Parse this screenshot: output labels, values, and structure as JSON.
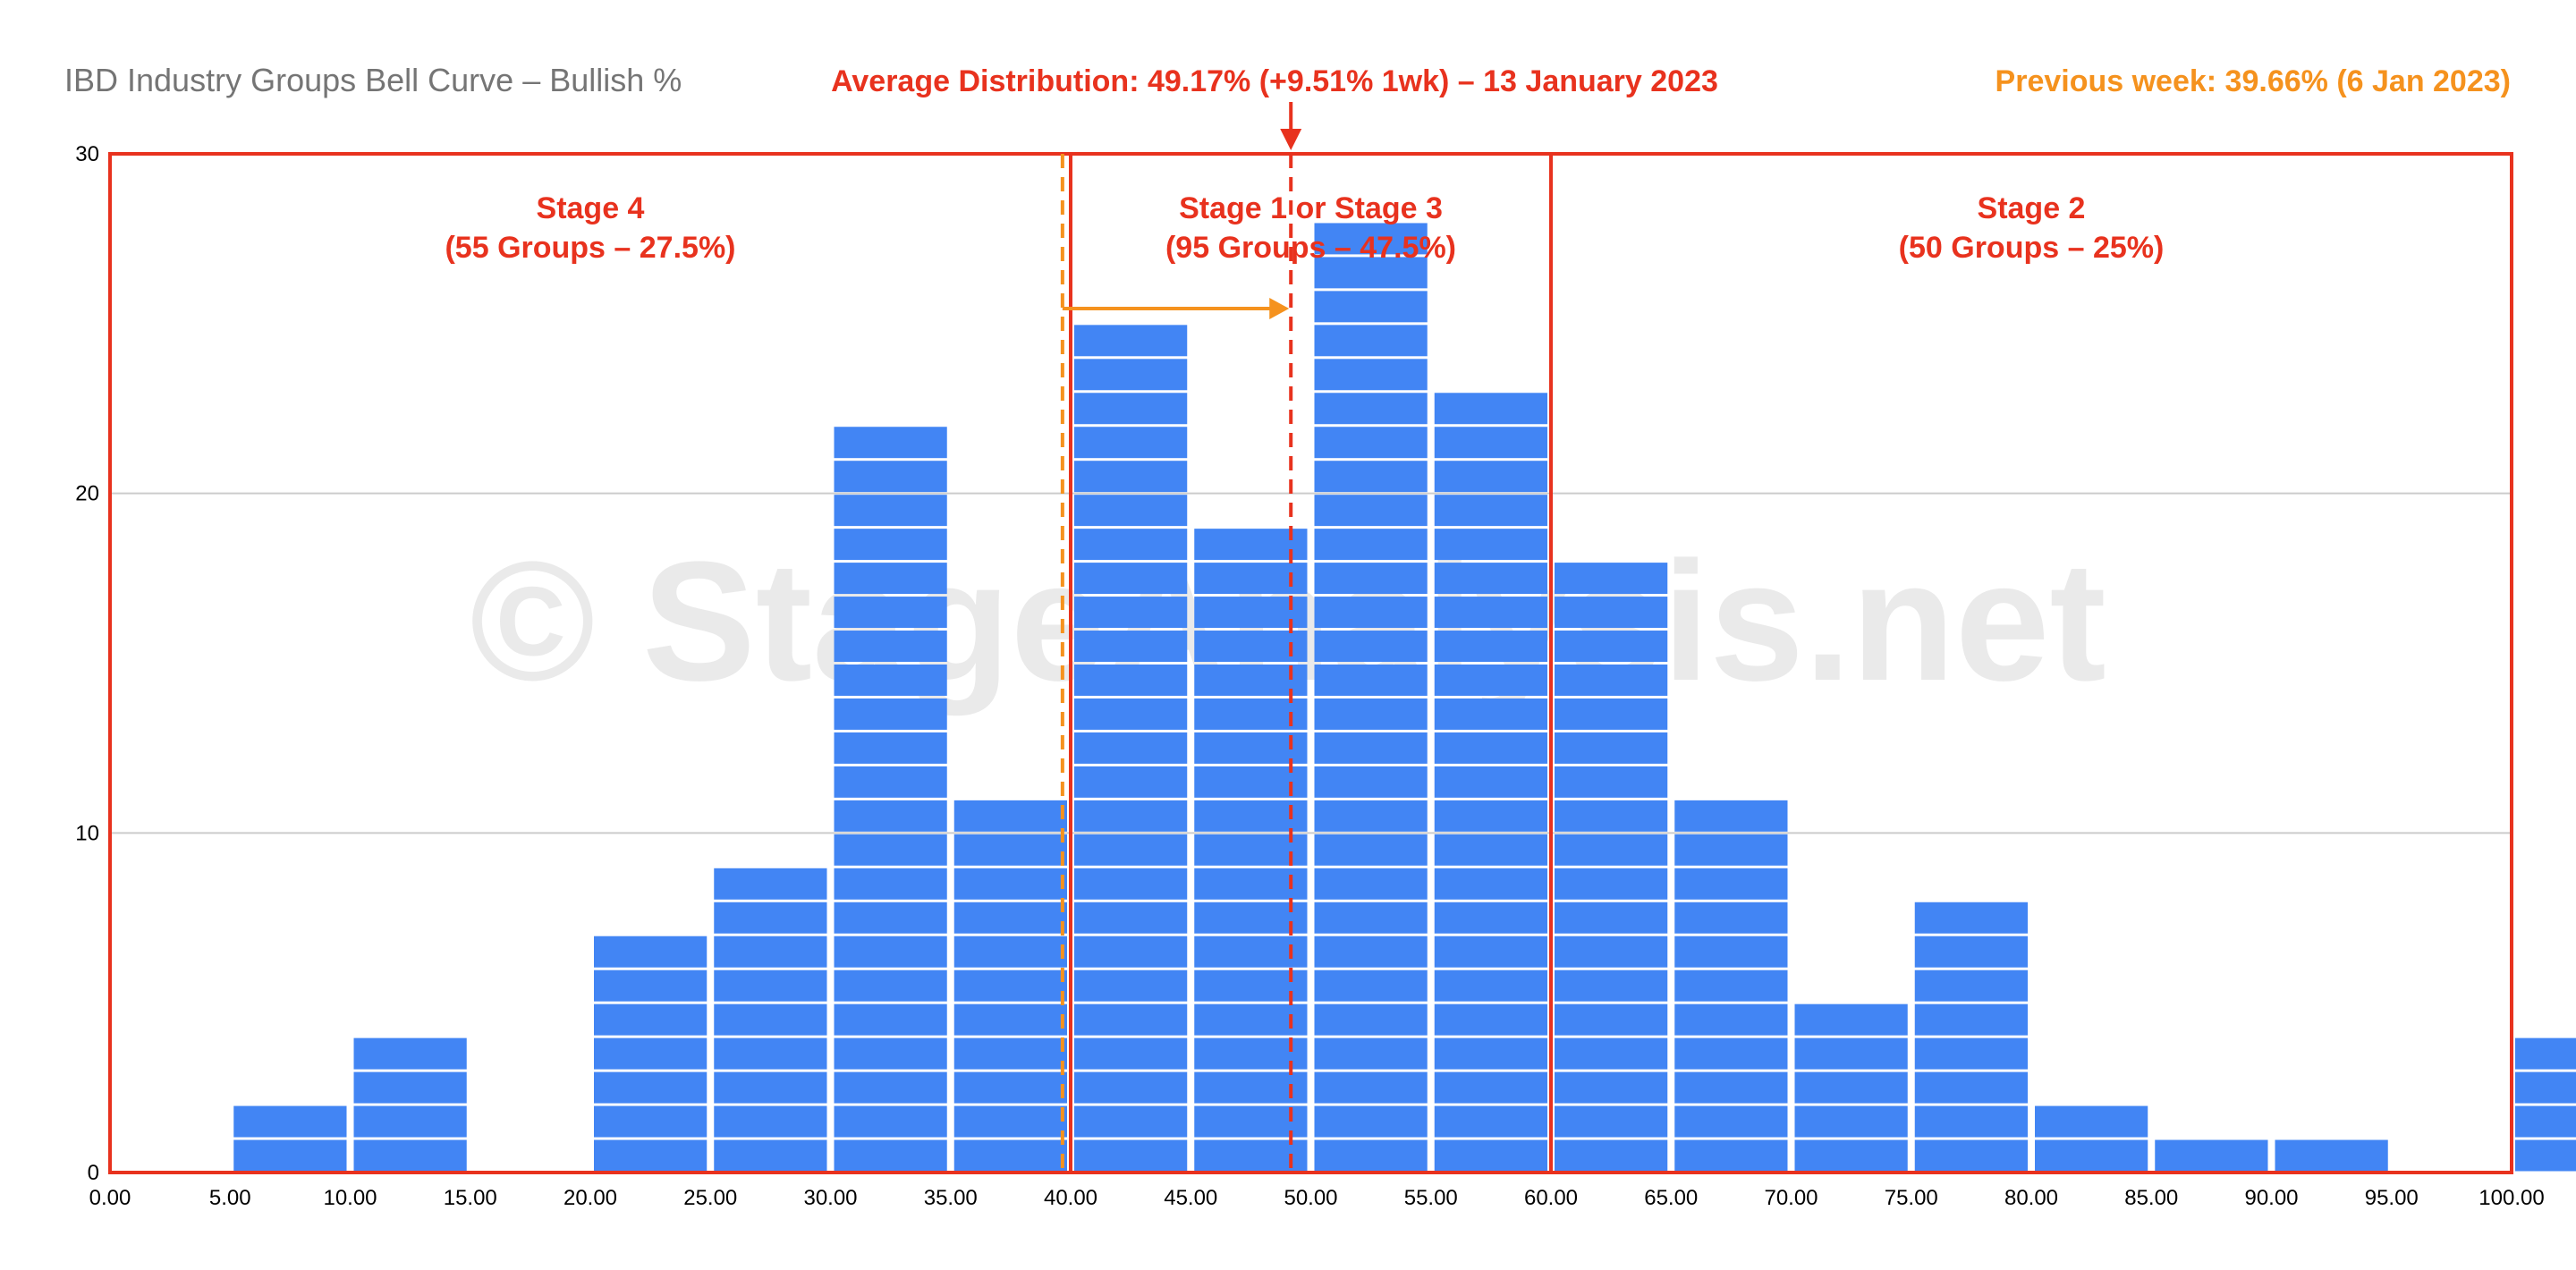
{
  "chart_data": {
    "type": "bar",
    "title": "IBD Industry Groups Bell Curve – Bullish %",
    "subtitle": "Average Distribution: 49.17% (+9.51% 1wk) – 13 January 2023",
    "previous_week": "Previous week: 39.66% (6 Jan 2023)",
    "watermark": "© StageAnalysis.net",
    "xlabel": "",
    "ylabel": "",
    "xlim": [
      0,
      100
    ],
    "ylim": [
      0,
      30
    ],
    "x_ticks": [
      0,
      5,
      10,
      15,
      20,
      25,
      30,
      35,
      40,
      45,
      50,
      55,
      60,
      65,
      70,
      75,
      80,
      85,
      90,
      95,
      100
    ],
    "x_tick_labels": [
      "0.00",
      "5.00",
      "10.00",
      "15.00",
      "20.00",
      "25.00",
      "30.00",
      "35.00",
      "40.00",
      "45.00",
      "50.00",
      "55.00",
      "60.00",
      "65.00",
      "70.00",
      "75.00",
      "80.00",
      "85.00",
      "90.00",
      "95.00",
      "100.00"
    ],
    "y_ticks": [
      0,
      10,
      20,
      30
    ],
    "y_tick_labels": [
      "0",
      "10",
      "20",
      "30"
    ],
    "grid": true,
    "bar_color": "#4285f4",
    "bins": [
      {
        "start": 0,
        "end": 5,
        "value": 0
      },
      {
        "start": 5,
        "end": 10,
        "value": 2
      },
      {
        "start": 10,
        "end": 15,
        "value": 4
      },
      {
        "start": 15,
        "end": 20,
        "value": 0
      },
      {
        "start": 20,
        "end": 25,
        "value": 7
      },
      {
        "start": 25,
        "end": 30,
        "value": 9
      },
      {
        "start": 30,
        "end": 35,
        "value": 22
      },
      {
        "start": 35,
        "end": 40,
        "value": 11
      },
      {
        "start": 40,
        "end": 45,
        "value": 25
      },
      {
        "start": 45,
        "end": 50,
        "value": 19
      },
      {
        "start": 50,
        "end": 55,
        "value": 28
      },
      {
        "start": 55,
        "end": 60,
        "value": 23
      },
      {
        "start": 60,
        "end": 65,
        "value": 18
      },
      {
        "start": 65,
        "end": 70,
        "value": 11
      },
      {
        "start": 70,
        "end": 75,
        "value": 5
      },
      {
        "start": 75,
        "end": 80,
        "value": 8
      },
      {
        "start": 80,
        "end": 85,
        "value": 2
      },
      {
        "start": 85,
        "end": 90,
        "value": 1
      },
      {
        "start": 90,
        "end": 95,
        "value": 1
      },
      {
        "start": 95,
        "end": 100,
        "value": 0
      },
      {
        "start": 100,
        "end": 105,
        "value": 4
      }
    ],
    "stages": [
      {
        "name": "Stage 4",
        "detail": "(55 Groups – 27.5%)",
        "x_start": 0,
        "x_end": 40
      },
      {
        "name": "Stage 1 or Stage 3",
        "detail": "(95 Groups – 47.5%)",
        "x_start": 40,
        "x_end": 60
      },
      {
        "name": "Stage 2",
        "detail": "(50 Groups – 25%)",
        "x_start": 60,
        "x_end": 100
      }
    ],
    "average_line": {
      "value": 49.17,
      "color": "#e8321e"
    },
    "previous_line": {
      "value": 39.66,
      "color": "#f5921e"
    },
    "colors": {
      "stage_box": "#e8321e",
      "average": "#e8321e",
      "previous": "#f5921e",
      "title": "#757575",
      "grid": "#cccccc"
    }
  }
}
